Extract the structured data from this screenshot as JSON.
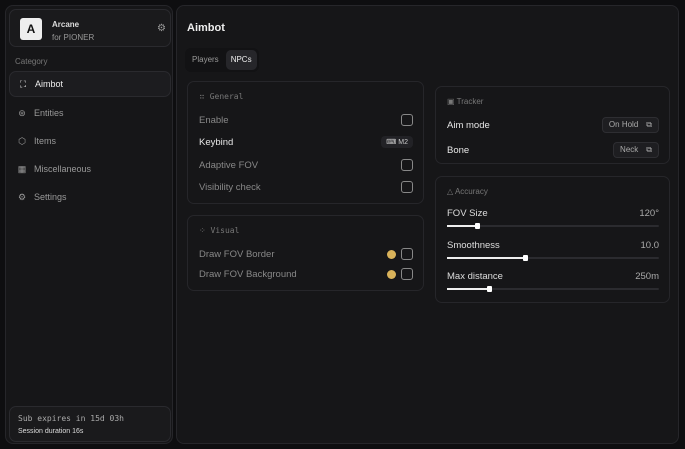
{
  "brand": {
    "logo": "A",
    "name": "Arcane",
    "sub": "for PIONER",
    "settings_icon": "gear-icon"
  },
  "sidebar": {
    "category_label": "Category",
    "items": [
      {
        "label": "Aimbot",
        "icon": "crosshair-icon",
        "active": true
      },
      {
        "label": "Entities",
        "icon": "entities-icon",
        "active": false
      },
      {
        "label": "Items",
        "icon": "box-icon",
        "active": false
      },
      {
        "label": "Miscellaneous",
        "icon": "grid-icon",
        "active": false
      },
      {
        "label": "Settings",
        "icon": "gear-icon",
        "active": false
      }
    ],
    "subscription": "Sub expires in 15d 03h",
    "session": "Session duration 16s"
  },
  "main": {
    "title": "Aimbot",
    "tabs": [
      {
        "label": "Players",
        "active": false
      },
      {
        "label": "NPCs",
        "active": true
      }
    ]
  },
  "general": {
    "title": "General",
    "enable": "Enable",
    "keybind": "Keybind",
    "keybind_value": "M2",
    "adaptive_fov": "Adaptive FOV",
    "visibility_check": "Visibility check"
  },
  "visual": {
    "title": "Visual",
    "draw_border": "Draw FOV Border",
    "draw_background": "Draw FOV Background",
    "color": "#d9b25a"
  },
  "tracker": {
    "title": "Tracker",
    "aim_mode": "Aim mode",
    "aim_mode_value": "On Hold",
    "bone": "Bone",
    "bone_value": "Neck"
  },
  "accuracy": {
    "title": "Accuracy",
    "sliders": [
      {
        "label": "FOV Size",
        "value": "120°",
        "fraction": 0.14
      },
      {
        "label": "Smoothness",
        "value": "10.0",
        "fraction": 0.37
      },
      {
        "label": "Max distance",
        "value": "250m",
        "fraction": 0.2
      }
    ]
  }
}
